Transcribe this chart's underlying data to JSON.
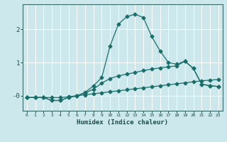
{
  "xlabel": "Humidex (Indice chaleur)",
  "bg_color": "#cce8ec",
  "grid_color": "#ffffff",
  "line_color": "#1a6e6a",
  "xlim": [
    -0.5,
    23.5
  ],
  "ylim": [
    -0.45,
    2.75
  ],
  "yticks": [
    0,
    1,
    2
  ],
  "ytick_labels": [
    "-0",
    "1",
    "2"
  ],
  "xticks": [
    0,
    1,
    2,
    3,
    4,
    5,
    6,
    7,
    8,
    9,
    10,
    11,
    12,
    13,
    14,
    15,
    16,
    17,
    18,
    19,
    20,
    21,
    22,
    23
  ],
  "line1_x": [
    0,
    1,
    2,
    3,
    4,
    5,
    6,
    7,
    8,
    9,
    10,
    11,
    12,
    13,
    14,
    15,
    16,
    17,
    18,
    19,
    20,
    21,
    22,
    23
  ],
  "line1_y": [
    -0.05,
    -0.05,
    -0.05,
    -0.05,
    -0.05,
    -0.03,
    0.0,
    0.03,
    0.06,
    0.09,
    0.12,
    0.15,
    0.18,
    0.21,
    0.24,
    0.27,
    0.3,
    0.33,
    0.36,
    0.39,
    0.42,
    0.45,
    0.47,
    0.49
  ],
  "line2_x": [
    0,
    1,
    2,
    3,
    4,
    5,
    6,
    7,
    8,
    9,
    10,
    11,
    12,
    13,
    14,
    15,
    16,
    17,
    18,
    19,
    20,
    21,
    22,
    23
  ],
  "line2_y": [
    -0.05,
    -0.05,
    -0.05,
    -0.14,
    -0.14,
    -0.05,
    0.0,
    0.08,
    0.2,
    0.38,
    0.52,
    0.6,
    0.65,
    0.7,
    0.76,
    0.8,
    0.84,
    0.87,
    0.9,
    1.04,
    0.82,
    0.35,
    0.3,
    0.28
  ],
  "line3_x": [
    0,
    1,
    2,
    3,
    4,
    5,
    6,
    7,
    8,
    9,
    10,
    11,
    12,
    13,
    14,
    15,
    16,
    17,
    18,
    19,
    20,
    21,
    22,
    23
  ],
  "line3_y": [
    -0.05,
    -0.05,
    -0.05,
    -0.14,
    -0.14,
    -0.05,
    0.0,
    0.1,
    0.3,
    0.55,
    1.5,
    2.15,
    2.38,
    2.45,
    2.35,
    1.78,
    1.35,
    1.0,
    0.95,
    1.04,
    0.82,
    0.35,
    0.3,
    0.28
  ],
  "marker": "D",
  "markersize": 2.5,
  "linewidth": 0.9
}
